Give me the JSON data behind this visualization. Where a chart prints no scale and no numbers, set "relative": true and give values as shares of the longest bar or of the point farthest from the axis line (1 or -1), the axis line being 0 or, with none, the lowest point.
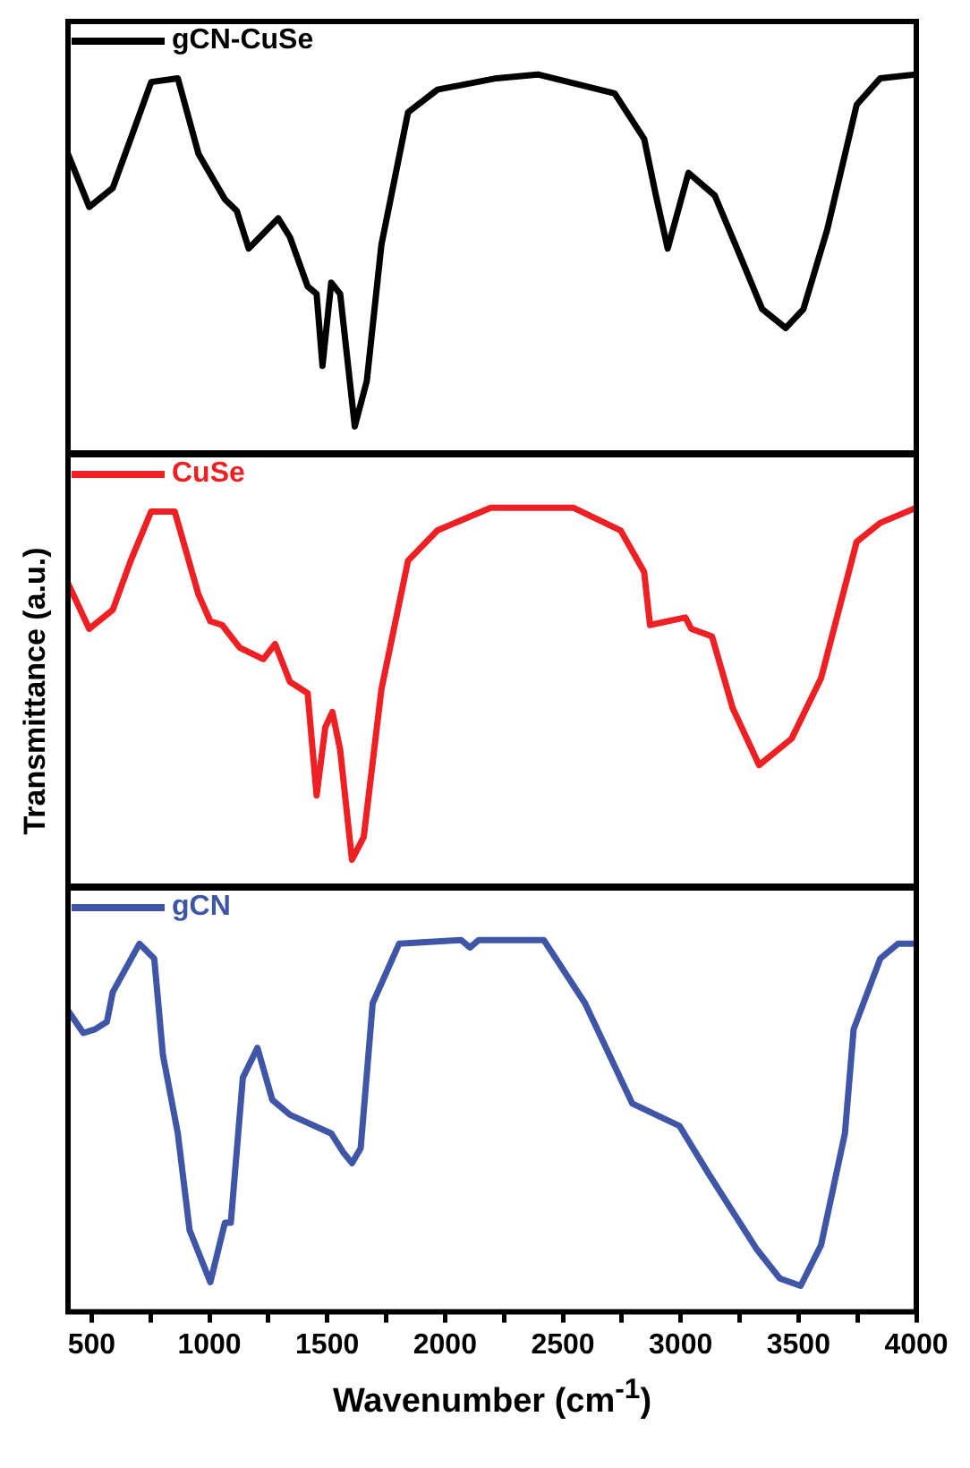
{
  "chart_data": [
    {
      "type": "line",
      "relative": true,
      "xlim": [
        400,
        4000
      ],
      "tick_labels": false,
      "legend": "top left",
      "x": [
        400,
        490,
        590,
        666,
        753,
        866,
        954,
        1066,
        1116,
        1167,
        1292,
        1342,
        1417,
        1455,
        1480,
        1517,
        1555,
        1617,
        1668,
        1730,
        1843,
        1968,
        2219,
        2394,
        2720,
        2845,
        2895,
        2945,
        3033,
        3145,
        3246,
        3346,
        3446,
        3521,
        3622,
        3747,
        3847,
        4000
      ],
      "series": [
        {
          "name": "gCN-CuSe",
          "color": "#000000",
          "values": [
            0.79,
            0.65,
            0.7,
            0.83,
            0.98,
            0.99,
            0.79,
            0.67,
            0.64,
            0.54,
            0.62,
            0.57,
            0.44,
            0.42,
            0.23,
            0.45,
            0.42,
            0.07,
            0.19,
            0.55,
            0.9,
            0.96,
            0.99,
            1,
            0.95,
            0.83,
            0.68,
            0.54,
            0.74,
            0.68,
            0.53,
            0.38,
            0.33,
            0.38,
            0.59,
            0.92,
            0.99,
            1
          ]
        }
      ]
    },
    {
      "type": "line",
      "relative": true,
      "xlim": [
        400,
        4000
      ],
      "tick_labels": false,
      "legend": "top left",
      "ylabel": "Transmittance (a.u.)",
      "x": [
        400,
        490,
        590,
        666,
        753,
        853,
        954,
        1004,
        1054,
        1129,
        1229,
        1279,
        1342,
        1417,
        1455,
        1492,
        1522,
        1555,
        1605,
        1655,
        1730,
        1843,
        1968,
        2194,
        2544,
        2745,
        2845,
        2870,
        3020,
        3045,
        3133,
        3221,
        3333,
        3471,
        3596,
        3747,
        3847,
        4000
      ],
      "series": [
        {
          "name": "CuSe",
          "color": "#ee2024",
          "values": [
            0.8,
            0.68,
            0.73,
            0.86,
            0.99,
            0.99,
            0.77,
            0.7,
            0.69,
            0.63,
            0.6,
            0.64,
            0.54,
            0.51,
            0.24,
            0.42,
            0.46,
            0.36,
            0.07,
            0.13,
            0.52,
            0.86,
            0.94,
            1,
            1,
            0.94,
            0.83,
            0.69,
            0.71,
            0.68,
            0.66,
            0.47,
            0.32,
            0.39,
            0.55,
            0.91,
            0.96,
            1
          ]
        }
      ]
    },
    {
      "type": "line",
      "relative": true,
      "xlim": [
        400,
        4000
      ],
      "tick_labels": "x",
      "legend": "top left",
      "xlabel": "Wavenumber (cm$^{-1}$)",
      "xticks": [
        500,
        {
          "value": 750,
          "label": null
        },
        1000,
        {
          "value": 1250,
          "label": null
        },
        1500,
        {
          "value": 1750,
          "label": null
        },
        2000,
        {
          "value": 2250,
          "label": null
        },
        2500,
        {
          "value": 2750,
          "label": null
        },
        3000,
        {
          "value": 3250,
          "label": null
        },
        3500,
        {
          "value": 3750,
          "label": null
        },
        4000
      ],
      "x": [
        400,
        465,
        515,
        565,
        590,
        703,
        766,
        803,
        866,
        916,
        1004,
        1066,
        1091,
        1142,
        1204,
        1267,
        1342,
        1517,
        1567,
        1605,
        1642,
        1693,
        1805,
        2068,
        2106,
        2143,
        2419,
        2594,
        2795,
        2995,
        3120,
        3321,
        3421,
        3509,
        3596,
        3697,
        3734,
        3847,
        3922,
        4000
      ],
      "series": [
        {
          "name": "gCN",
          "color": "#3f56a6",
          "values": [
            0.81,
            0.75,
            0.76,
            0.78,
            0.86,
            0.99,
            0.95,
            0.69,
            0.48,
            0.22,
            0.08,
            0.24,
            0.24,
            0.63,
            0.71,
            0.57,
            0.53,
            0.48,
            0.43,
            0.4,
            0.44,
            0.83,
            0.99,
            1,
            0.98,
            1,
            1,
            0.83,
            0.56,
            0.5,
            0.37,
            0.17,
            0.09,
            0.07,
            0.18,
            0.48,
            0.76,
            0.95,
            0.99,
            0.99
          ]
        }
      ]
    }
  ]
}
